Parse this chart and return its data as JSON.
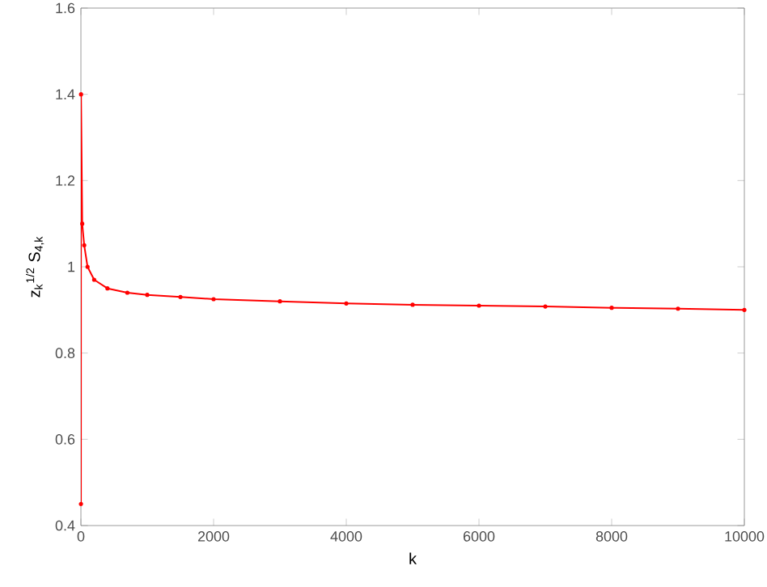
{
  "chart_data": {
    "type": "line",
    "xlabel": "k",
    "ylabel": "z$_{k}$$^{1/2}$ S$_{4,k}$",
    "x": [
      1,
      2,
      20,
      50,
      100,
      200,
      400,
      700,
      1000,
      1500,
      2000,
      3000,
      4000,
      5000,
      6000,
      7000,
      8000,
      9000,
      10000
    ],
    "series": [
      {
        "color": "#ff0000",
        "values": [
          0.45,
          1.4,
          1.1,
          1.05,
          1.0,
          0.97,
          0.95,
          0.94,
          0.935,
          0.93,
          0.925,
          0.92,
          0.915,
          0.912,
          0.91,
          0.908,
          0.905,
          0.903,
          0.9
        ]
      }
    ],
    "xlim": [
      0,
      10000
    ],
    "ylim": [
      0.4,
      1.6
    ],
    "xticks": [
      0,
      2000,
      4000,
      6000,
      8000,
      10000
    ],
    "yticks": [
      0.4,
      0.6,
      0.8,
      1,
      1.2,
      1.4,
      1.6
    ],
    "marker": "circle",
    "line_style": "solid"
  }
}
